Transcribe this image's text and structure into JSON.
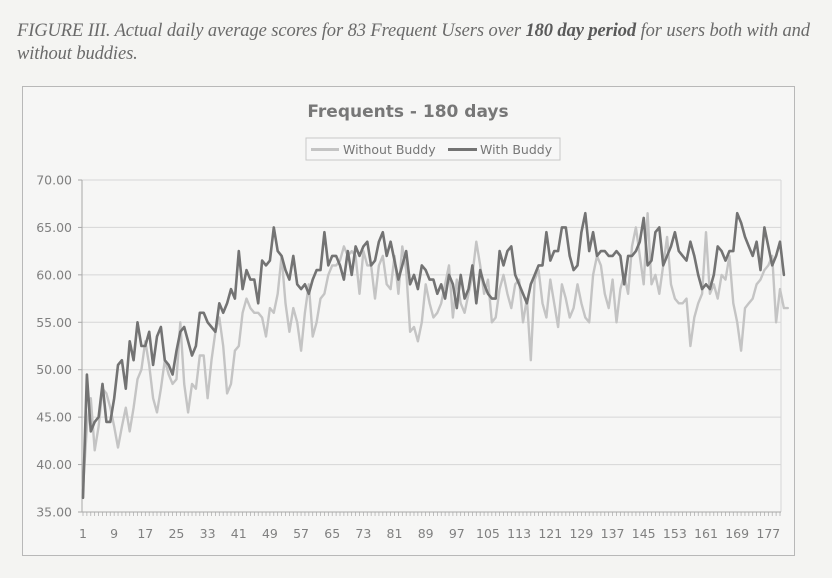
{
  "caption": {
    "prefix": "FIGURE III. Actual daily average scores for 83 Frequent Users over ",
    "bold": "180 day period",
    "suffix": " for users both with and without buddies."
  },
  "colors": {
    "without_buddy": "#c4c4c4",
    "with_buddy": "#737373",
    "gridline": "#d6d6d6",
    "axis": "#a8a8a8"
  },
  "chart_data": {
    "type": "line",
    "title": "Frequents - 180 days",
    "xlabel": "",
    "ylabel": "",
    "ylim": [
      35,
      70
    ],
    "xlim": [
      1,
      180
    ],
    "grid": true,
    "legend_position": "top-center",
    "y_ticks": [
      "35.00",
      "40.00",
      "45.00",
      "50.00",
      "55.00",
      "60.00",
      "65.00",
      "70.00"
    ],
    "x_tick_labels": [
      "1",
      "9",
      "17",
      "25",
      "33",
      "41",
      "49",
      "57",
      "65",
      "73",
      "81",
      "89",
      "97",
      "105",
      "113",
      "121",
      "129",
      "137",
      "145",
      "153",
      "161",
      "169",
      "177"
    ],
    "series": [
      {
        "name": "Without Buddy",
        "values": [
          37.5,
          44.0,
          47.0,
          41.5,
          44.0,
          48.0,
          47.5,
          46.0,
          44.0,
          41.8,
          44.0,
          46.0,
          43.5,
          46.0,
          49.0,
          50.0,
          53.0,
          50.5,
          47.0,
          45.5,
          48.0,
          51.0,
          49.5,
          48.5,
          49.0,
          55.0,
          48.5,
          45.5,
          48.5,
          48.0,
          51.5,
          51.5,
          47.0,
          51.0,
          54.0,
          55.5,
          52.5,
          47.5,
          48.5,
          52.0,
          52.5,
          56.0,
          57.5,
          56.5,
          56.0,
          56.0,
          55.5,
          53.5,
          56.5,
          56.0,
          58.0,
          62.0,
          57.0,
          54.0,
          56.5,
          55.0,
          52.0,
          56.0,
          59.0,
          53.5,
          55.0,
          57.5,
          58.0,
          60.0,
          61.0,
          61.0,
          61.5,
          63.0,
          62.0,
          62.5,
          62.0,
          58.0,
          62.5,
          61.0,
          61.0,
          57.5,
          61.0,
          62.0,
          59.0,
          58.5,
          62.0,
          58.0,
          63.0,
          60.5,
          54.0,
          54.5,
          53.0,
          55.0,
          59.0,
          57.0,
          55.5,
          56.0,
          57.0,
          59.0,
          61.0,
          55.5,
          59.5,
          57.0,
          56.0,
          58.0,
          60.0,
          63.5,
          61.0,
          58.0,
          59.5,
          55.0,
          55.5,
          58.5,
          60.0,
          58.0,
          56.5,
          59.0,
          59.5,
          55.0,
          57.5,
          51.0,
          59.5,
          60.5,
          57.0,
          55.5,
          59.5,
          57.0,
          54.5,
          59.0,
          57.5,
          55.5,
          56.5,
          59.0,
          57.0,
          55.5,
          55.0,
          60.0,
          62.0,
          61.0,
          58.0,
          56.5,
          59.5,
          55.0,
          58.5,
          60.0,
          58.0,
          63.0,
          65.0,
          62.0,
          59.0,
          66.5,
          59.0,
          60.0,
          58.0,
          61.0,
          64.0,
          59.0,
          57.5,
          57.0,
          57.0,
          57.5,
          52.5,
          55.5,
          57.0,
          58.0,
          64.5,
          58.0,
          59.0,
          57.5,
          60.0,
          59.5,
          62.0,
          57.0,
          55.0,
          52.0,
          56.5,
          57.0,
          57.5,
          59.0,
          59.5,
          60.5,
          61.0,
          62.0,
          55.0,
          58.5,
          56.5,
          56.5
        ]
      },
      {
        "name": "With Buddy",
        "values": [
          36.5,
          49.5,
          43.5,
          44.5,
          45.0,
          48.5,
          44.5,
          44.5,
          47.0,
          50.5,
          51.0,
          48.0,
          53.0,
          51.0,
          55.0,
          52.5,
          52.5,
          54.0,
          50.5,
          53.5,
          54.5,
          51.0,
          50.5,
          49.5,
          52.0,
          54.0,
          54.5,
          53.0,
          51.5,
          52.5,
          56.0,
          56.0,
          55.0,
          54.5,
          54.0,
          57.0,
          56.0,
          57.0,
          58.5,
          57.5,
          62.5,
          58.5,
          60.5,
          59.5,
          59.5,
          57.0,
          61.5,
          61.0,
          61.5,
          65.0,
          62.5,
          62.0,
          60.5,
          59.5,
          62.0,
          59.0,
          58.5,
          59.0,
          58.0,
          59.5,
          60.5,
          60.5,
          64.5,
          61.0,
          62.0,
          62.0,
          61.0,
          59.5,
          62.5,
          60.0,
          63.0,
          62.0,
          63.0,
          63.5,
          61.0,
          61.5,
          63.5,
          64.5,
          62.0,
          63.5,
          61.5,
          59.5,
          61.0,
          62.5,
          59.0,
          60.0,
          58.5,
          61.0,
          60.5,
          59.5,
          59.5,
          58.0,
          59.0,
          57.5,
          60.0,
          59.0,
          56.5,
          60.0,
          57.5,
          58.5,
          61.0,
          57.0,
          60.5,
          59.0,
          58.0,
          57.5,
          57.5,
          62.5,
          61.0,
          62.5,
          63.0,
          60.0,
          59.0,
          58.0,
          57.0,
          59.0,
          60.0,
          61.0,
          61.0,
          64.5,
          61.5,
          62.5,
          62.5,
          65.0,
          65.0,
          62.0,
          60.5,
          61.0,
          64.5,
          66.5,
          62.5,
          64.5,
          62.0,
          62.5,
          62.5,
          62.0,
          62.0,
          62.5,
          62.0,
          59.0,
          62.0,
          62.0,
          62.5,
          63.5,
          66.0,
          61.0,
          61.5,
          64.5,
          65.0,
          61.0,
          62.0,
          63.0,
          64.5,
          62.5,
          62.0,
          61.5,
          63.5,
          62.0,
          60.0,
          58.5,
          59.0,
          58.5,
          60.0,
          63.0,
          62.5,
          61.5,
          62.5,
          62.5,
          66.5,
          65.5,
          64.0,
          63.0,
          62.0,
          63.5,
          60.5,
          65.0,
          63.0,
          61.0,
          62.0,
          63.5,
          60.0
        ]
      }
    ]
  }
}
